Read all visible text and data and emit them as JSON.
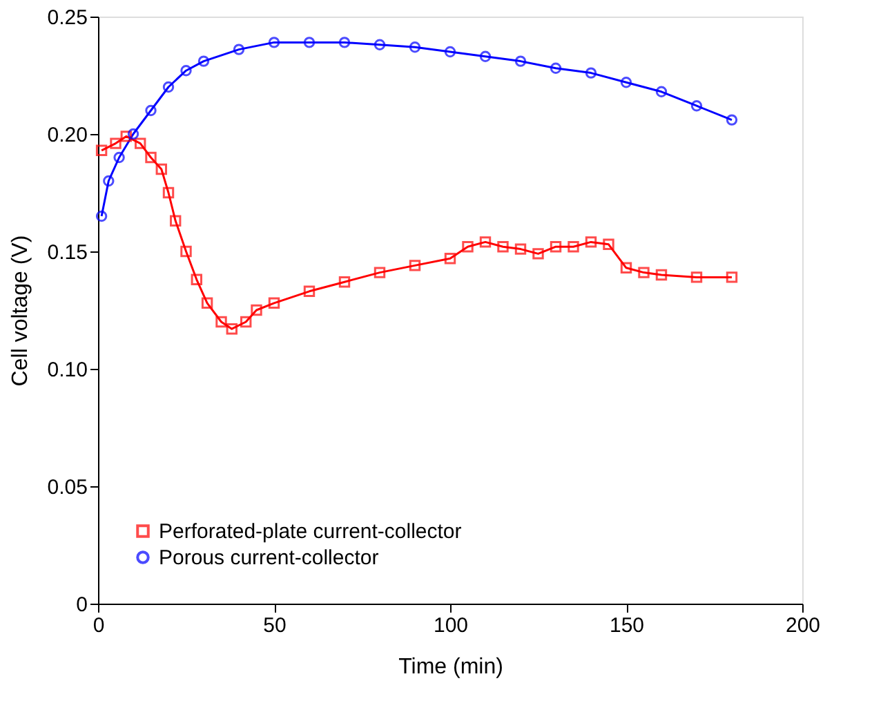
{
  "chart_data": {
    "type": "line",
    "xlabel": "Time (min)",
    "ylabel": "Cell voltage (V)",
    "xlim": [
      0,
      200
    ],
    "xticks": [
      0,
      50,
      100,
      150,
      200
    ],
    "ylim": [
      0,
      0.25
    ],
    "yticks": [
      0,
      0.05,
      {
        "value": 0.1,
        "label": "0.10"
      },
      0.15,
      {
        "value": 0.2,
        "label": "0.20"
      },
      0.25
    ],
    "grid": false,
    "legend": "bottom left",
    "series": [
      {
        "name": "Perforated-plate current-collector",
        "color": "#ff0000",
        "marker": "square",
        "x": [
          1,
          5,
          8,
          12,
          15,
          18,
          20,
          22,
          25,
          28,
          31,
          35,
          38,
          42,
          45,
          50,
          60,
          70,
          80,
          90,
          100,
          105,
          110,
          115,
          120,
          125,
          130,
          135,
          140,
          145,
          150,
          155,
          160,
          170,
          180
        ],
        "values": [
          0.193,
          0.196,
          0.199,
          0.196,
          0.19,
          0.185,
          0.175,
          0.163,
          0.15,
          0.138,
          0.128,
          0.12,
          0.117,
          0.12,
          0.125,
          0.128,
          0.133,
          0.137,
          0.141,
          0.144,
          0.147,
          0.152,
          0.154,
          0.152,
          0.151,
          0.149,
          0.152,
          0.152,
          0.154,
          0.153,
          0.143,
          0.141,
          0.14,
          0.139,
          0.139
        ]
      },
      {
        "name": "Porous current-collector",
        "color": "#0000ff",
        "marker": "circle",
        "x": [
          1,
          3,
          6,
          10,
          15,
          20,
          25,
          30,
          40,
          50,
          60,
          70,
          80,
          90,
          100,
          110,
          120,
          130,
          140,
          150,
          160,
          170,
          180
        ],
        "values": [
          0.165,
          0.18,
          0.19,
          0.2,
          0.21,
          0.22,
          0.227,
          0.231,
          0.236,
          0.239,
          0.239,
          0.239,
          0.238,
          0.237,
          0.235,
          0.233,
          0.231,
          0.228,
          0.226,
          0.222,
          0.218,
          0.212,
          0.206
        ]
      }
    ]
  }
}
